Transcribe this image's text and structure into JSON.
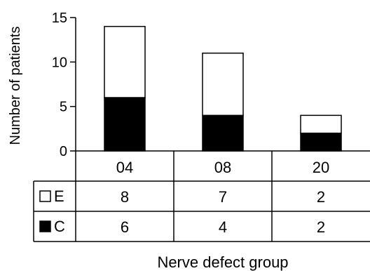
{
  "chart_data": {
    "type": "bar",
    "stacked": true,
    "categories": [
      "04",
      "08",
      "20"
    ],
    "series": [
      {
        "name": "C",
        "values": [
          6,
          4,
          2
        ],
        "color": "#000000"
      },
      {
        "name": "E",
        "values": [
          8,
          7,
          2
        ],
        "color": "#ffffff"
      }
    ],
    "ylabel": "Number of patients",
    "xlabel": "Nerve defect group",
    "ylim": [
      0,
      15
    ],
    "yticks": [
      0,
      5,
      10,
      15
    ],
    "grid": false,
    "legend": "data-table-left"
  }
}
